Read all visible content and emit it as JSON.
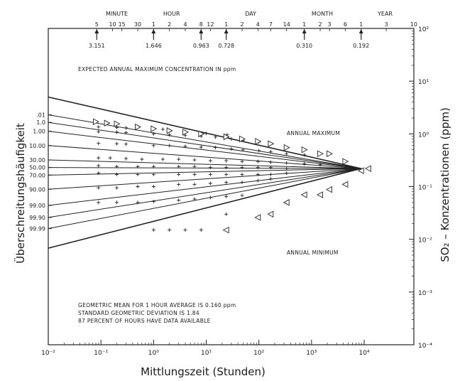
{
  "chart_data": {
    "type": "line",
    "xlabel": "Mittlungszeit   (Stunden)",
    "ylabel_left": "Überschreitungshäufigkeit",
    "ylabel_right": "SO₂ – Konzentrationen (ppm)",
    "x_scale": "log",
    "xlim": [
      0.01,
      10000
    ],
    "x_ticks": [
      {
        "value": 0.01,
        "label": "10⁻²"
      },
      {
        "value": 0.1,
        "label": "10⁻¹"
      },
      {
        "value": 1,
        "label": "10⁰"
      },
      {
        "value": 10,
        "label": "10¹"
      },
      {
        "value": 100,
        "label": "10²"
      },
      {
        "value": 1000,
        "label": "10³"
      },
      {
        "value": 10000,
        "label": "10⁴"
      }
    ],
    "y_scale": "log",
    "ylim": [
      0.0001,
      100
    ],
    "y_ticks_right": [
      {
        "value": 100,
        "label": "10²"
      },
      {
        "value": 10,
        "label": "10¹"
      },
      {
        "value": 1,
        "label": "10⁰"
      },
      {
        "value": 0.1,
        "label": "10⁻¹"
      },
      {
        "value": 0.01,
        "label": "10⁻²"
      },
      {
        "value": 0.001,
        "label": "10⁻³"
      },
      {
        "value": 0.0001,
        "label": "10⁻⁴"
      }
    ],
    "y_labels_left": [
      {
        "label": ".01",
        "value": 2.3
      },
      {
        "label": "1.0",
        "value": 1.65
      },
      {
        "label": "1.00",
        "value": 1.12
      },
      {
        "label": "10.00",
        "value": 0.6
      },
      {
        "label": "30.00",
        "value": 0.32
      },
      {
        "label": "50.00",
        "value": 0.23
      },
      {
        "label": "70.00",
        "value": 0.165
      },
      {
        "label": "90.00",
        "value": 0.089
      },
      {
        "label": "99.00",
        "value": 0.044
      },
      {
        "label": "99.90",
        "value": 0.026
      },
      {
        "label": "99.99",
        "value": 0.016
      }
    ],
    "top_groups": [
      {
        "label": "MINUTE",
        "x": 0.2
      },
      {
        "label": "HOUR",
        "x": 2.2
      },
      {
        "label": "DAY",
        "x": 70
      },
      {
        "label": "MONTH",
        "x": 1600
      },
      {
        "label": "YEAR",
        "x": 25000
      }
    ],
    "top_ticks": [
      {
        "label": "5",
        "x": 0.0833
      },
      {
        "label": "10",
        "x": 0.1667
      },
      {
        "label": "15",
        "x": 0.25
      },
      {
        "label": "30",
        "x": 0.5
      },
      {
        "label": "1",
        "x": 1
      },
      {
        "label": "2",
        "x": 2
      },
      {
        "label": "4",
        "x": 4
      },
      {
        "label": "8",
        "x": 8
      },
      {
        "label": "12",
        "x": 12
      },
      {
        "label": "1",
        "x": 24
      },
      {
        "label": "2",
        "x": 48
      },
      {
        "label": "4",
        "x": 96
      },
      {
        "label": "7",
        "x": 168
      },
      {
        "label": "14",
        "x": 336
      },
      {
        "label": "1",
        "x": 730
      },
      {
        "label": "2",
        "x": 1460
      },
      {
        "label": "3",
        "x": 2190
      },
      {
        "label": "6",
        "x": 4380
      },
      {
        "label": "1",
        "x": 8760
      },
      {
        "label": "3",
        "x": 26280
      },
      {
        "label": "10",
        "x": 87600
      }
    ],
    "expected_annual_max": [
      {
        "x": 0.0833,
        "value": "3.151"
      },
      {
        "x": 1,
        "value": "1.646"
      },
      {
        "x": 8,
        "value": "0.963"
      },
      {
        "x": 24,
        "value": "0.728"
      },
      {
        "x": 730,
        "value": "0.310"
      },
      {
        "x": 8760,
        "value": "0.192"
      }
    ],
    "convergence_point": {
      "x": 8760,
      "y": 0.22
    },
    "frequency_lines": [
      {
        "label": "max_envelope",
        "start_y": 5.0
      },
      {
        "label": ".01",
        "start_y": 2.3
      },
      {
        "label": "1.0",
        "start_y": 1.65
      },
      {
        "label": "1.00",
        "start_y": 1.12
      },
      {
        "label": "10.00",
        "start_y": 0.6
      },
      {
        "label": "30.00",
        "start_y": 0.32
      },
      {
        "label": "50.00",
        "start_y": 0.23
      },
      {
        "label": "70.00",
        "start_y": 0.165
      },
      {
        "label": "90.00",
        "start_y": 0.089
      },
      {
        "label": "99.00",
        "start_y": 0.044
      },
      {
        "label": "99.90",
        "start_y": 0.026
      },
      {
        "label": "99.99",
        "start_y": 0.016
      },
      {
        "label": "min_envelope",
        "start_y": 0.0068
      }
    ],
    "annual_max_markers": [
      {
        "x": 0.08,
        "y": 1.7
      },
      {
        "x": 0.13,
        "y": 1.6
      },
      {
        "x": 0.2,
        "y": 1.55
      },
      {
        "x": 0.5,
        "y": 1.35
      },
      {
        "x": 1,
        "y": 1.25
      },
      {
        "x": 2,
        "y": 1.15
      },
      {
        "x": 4,
        "y": 1.08
      },
      {
        "x": 8,
        "y": 1.0
      },
      {
        "x": 24,
        "y": 0.88
      },
      {
        "x": 48,
        "y": 0.8
      },
      {
        "x": 96,
        "y": 0.72
      },
      {
        "x": 168,
        "y": 0.65
      },
      {
        "x": 336,
        "y": 0.55
      },
      {
        "x": 730,
        "y": 0.5
      },
      {
        "x": 1460,
        "y": 0.42
      },
      {
        "x": 2190,
        "y": 0.42
      },
      {
        "x": 4380,
        "y": 0.3
      }
    ],
    "annual_min_markers": [
      {
        "x": 24,
        "y": 0.015
      },
      {
        "x": 96,
        "y": 0.026
      },
      {
        "x": 168,
        "y": 0.03
      },
      {
        "x": 336,
        "y": 0.05
      },
      {
        "x": 730,
        "y": 0.07
      },
      {
        "x": 1460,
        "y": 0.07
      },
      {
        "x": 2190,
        "y": 0.088
      },
      {
        "x": 4380,
        "y": 0.11
      },
      {
        "x": 8760,
        "y": 0.2
      },
      {
        "x": 12000,
        "y": 0.22
      }
    ],
    "plus_markers": [
      {
        "x": 0.09,
        "y": 1.35
      },
      {
        "x": 0.2,
        "y": 1.32
      },
      {
        "x": 0.3,
        "y": 1.3
      },
      {
        "x": 1,
        "y": 1.25
      },
      {
        "x": 1.5,
        "y": 1.22
      },
      {
        "x": 4,
        "y": 1.1
      },
      {
        "x": 10,
        "y": 1.02
      },
      {
        "x": 25,
        "y": 0.96
      },
      {
        "x": 0.09,
        "y": 1.1
      },
      {
        "x": 0.2,
        "y": 1.08
      },
      {
        "x": 0.3,
        "y": 1.06
      },
      {
        "x": 1,
        "y": 1.0
      },
      {
        "x": 2,
        "y": 0.96
      },
      {
        "x": 4,
        "y": 0.94
      },
      {
        "x": 8,
        "y": 0.9
      },
      {
        "x": 15,
        "y": 0.87
      },
      {
        "x": 30,
        "y": 0.8
      },
      {
        "x": 50,
        "y": 0.76
      },
      {
        "x": 100,
        "y": 0.7
      },
      {
        "x": 0.09,
        "y": 0.66
      },
      {
        "x": 0.2,
        "y": 0.65
      },
      {
        "x": 0.3,
        "y": 0.64
      },
      {
        "x": 1,
        "y": 0.6
      },
      {
        "x": 2,
        "y": 0.6
      },
      {
        "x": 4,
        "y": 0.58
      },
      {
        "x": 8,
        "y": 0.56
      },
      {
        "x": 15,
        "y": 0.55
      },
      {
        "x": 30,
        "y": 0.52
      },
      {
        "x": 50,
        "y": 0.5
      },
      {
        "x": 100,
        "y": 0.48
      },
      {
        "x": 168,
        "y": 0.46
      },
      {
        "x": 336,
        "y": 0.42
      },
      {
        "x": 730,
        "y": 0.4
      },
      {
        "x": 0.09,
        "y": 0.35
      },
      {
        "x": 0.15,
        "y": 0.35
      },
      {
        "x": 0.3,
        "y": 0.34
      },
      {
        "x": 0.6,
        "y": 0.33
      },
      {
        "x": 1.5,
        "y": 0.33
      },
      {
        "x": 3,
        "y": 0.33
      },
      {
        "x": 6,
        "y": 0.32
      },
      {
        "x": 12,
        "y": 0.31
      },
      {
        "x": 24,
        "y": 0.31
      },
      {
        "x": 48,
        "y": 0.3
      },
      {
        "x": 96,
        "y": 0.3
      },
      {
        "x": 168,
        "y": 0.29
      },
      {
        "x": 336,
        "y": 0.28
      },
      {
        "x": 730,
        "y": 0.27
      },
      {
        "x": 1460,
        "y": 0.26
      },
      {
        "x": 0.09,
        "y": 0.25
      },
      {
        "x": 0.2,
        "y": 0.24
      },
      {
        "x": 0.5,
        "y": 0.24
      },
      {
        "x": 1,
        "y": 0.24
      },
      {
        "x": 3,
        "y": 0.24
      },
      {
        "x": 6,
        "y": 0.24
      },
      {
        "x": 12,
        "y": 0.23
      },
      {
        "x": 24,
        "y": 0.23
      },
      {
        "x": 48,
        "y": 0.23
      },
      {
        "x": 96,
        "y": 0.23
      },
      {
        "x": 168,
        "y": 0.23
      },
      {
        "x": 336,
        "y": 0.22
      },
      {
        "x": 0.09,
        "y": 0.18
      },
      {
        "x": 0.2,
        "y": 0.17
      },
      {
        "x": 0.5,
        "y": 0.17
      },
      {
        "x": 1,
        "y": 0.17
      },
      {
        "x": 3,
        "y": 0.17
      },
      {
        "x": 6,
        "y": 0.17
      },
      {
        "x": 12,
        "y": 0.17
      },
      {
        "x": 24,
        "y": 0.17
      },
      {
        "x": 48,
        "y": 0.17
      },
      {
        "x": 96,
        "y": 0.17
      },
      {
        "x": 168,
        "y": 0.17
      },
      {
        "x": 336,
        "y": 0.18
      },
      {
        "x": 0.09,
        "y": 0.095
      },
      {
        "x": 0.2,
        "y": 0.095
      },
      {
        "x": 0.5,
        "y": 0.1
      },
      {
        "x": 1,
        "y": 0.1
      },
      {
        "x": 3,
        "y": 0.11
      },
      {
        "x": 6,
        "y": 0.11
      },
      {
        "x": 12,
        "y": 0.115
      },
      {
        "x": 24,
        "y": 0.12
      },
      {
        "x": 48,
        "y": 0.12
      },
      {
        "x": 96,
        "y": 0.13
      },
      {
        "x": 168,
        "y": 0.14
      },
      {
        "x": 0.09,
        "y": 0.05
      },
      {
        "x": 0.2,
        "y": 0.05
      },
      {
        "x": 0.5,
        "y": 0.05
      },
      {
        "x": 1,
        "y": 0.052
      },
      {
        "x": 3,
        "y": 0.055
      },
      {
        "x": 6,
        "y": 0.058
      },
      {
        "x": 12,
        "y": 0.062
      },
      {
        "x": 24,
        "y": 0.065
      },
      {
        "x": 48,
        "y": 0.068
      },
      {
        "x": 1,
        "y": 0.015
      },
      {
        "x": 2,
        "y": 0.015
      },
      {
        "x": 4,
        "y": 0.015
      },
      {
        "x": 8,
        "y": 0.015
      },
      {
        "x": 24,
        "y": 0.03
      }
    ],
    "annotations": {
      "header": "EXPECTED ANNUAL MAXIMUM CONCENTRATION IN ppm",
      "annual_max": "ANNUAL MAXIMUM",
      "annual_min": "ANNUAL MINIMUM",
      "stats": [
        "GEOMETRIC MEAN FOR 1 HOUR AVERAGE IS 0.160 ppm",
        "STANDARD GEOMETRIC DEVIATION IS 1.84",
        "87 PERCENT OF HOURS HAVE DATA AVAILABLE"
      ]
    }
  }
}
